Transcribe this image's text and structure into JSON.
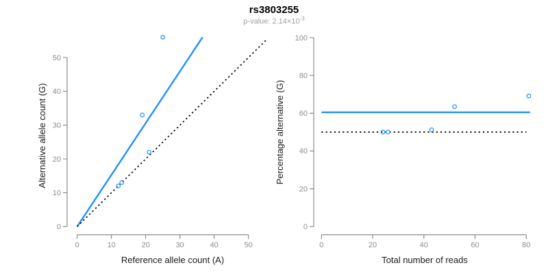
{
  "header": {
    "title": "rs3803255",
    "pvalue_prefix": "p-value: 2.14×10",
    "pvalue_exponent": "-3"
  },
  "colors": {
    "accent_blue": "#1E90FF",
    "dotted_black": "#000000",
    "axis_gray": "#808080",
    "tick_label_gray": "#8C8C8C",
    "axis_label_color": "#1A1A1A",
    "title_color": "#000000",
    "subtitle_gray": "#9E9E9E",
    "background": "#FFFFFF"
  },
  "chart_data": [
    {
      "type": "scatter",
      "panel": "allele-counts",
      "xlabel": "Reference allele count (A)",
      "ylabel": "Alternative allele count (G)",
      "xlim": [
        0,
        56
      ],
      "ylim": [
        0,
        56.5
      ],
      "xticks": [
        0,
        10,
        20,
        30,
        40,
        50
      ],
      "yticks": [
        0,
        10,
        20,
        30,
        40,
        50
      ],
      "grid": false,
      "legend": null,
      "points": [
        [
          12,
          12
        ],
        [
          13,
          13
        ],
        [
          21,
          22
        ],
        [
          19,
          33
        ],
        [
          25,
          56
        ]
      ],
      "lines": [
        {
          "name": "regression-line",
          "style": "solid",
          "color_key": "accent_blue",
          "from": [
            0,
            0
          ],
          "to": [
            36.6,
            56
          ]
        },
        {
          "name": "identity-line",
          "style": "dotted",
          "color_key": "dotted_black",
          "from": [
            0,
            0
          ],
          "to": [
            55.2,
            55.2
          ]
        }
      ]
    },
    {
      "type": "scatter",
      "panel": "percentage-vs-reads",
      "xlabel": "Total number of reads",
      "ylabel": "Percentage alternative (G)",
      "xlim": [
        0,
        84
      ],
      "ylim": [
        0,
        100
      ],
      "xticks": [
        0,
        20,
        40,
        60,
        80
      ],
      "yticks": [
        0,
        20,
        40,
        60,
        80,
        100
      ],
      "grid": false,
      "legend": null,
      "points": [
        [
          24,
          50
        ],
        [
          26,
          50
        ],
        [
          43,
          51.2
        ],
        [
          52,
          63.5
        ],
        [
          81,
          69.1
        ]
      ],
      "lines": [
        {
          "name": "mean-percentage-line",
          "style": "solid",
          "color_key": "accent_blue",
          "from": [
            0,
            60.5
          ],
          "to": [
            81.5,
            60.5
          ]
        },
        {
          "name": "expected-50-line",
          "style": "dotted",
          "color_key": "dotted_black",
          "from": [
            0,
            50
          ],
          "to": [
            80,
            50
          ]
        }
      ]
    }
  ]
}
